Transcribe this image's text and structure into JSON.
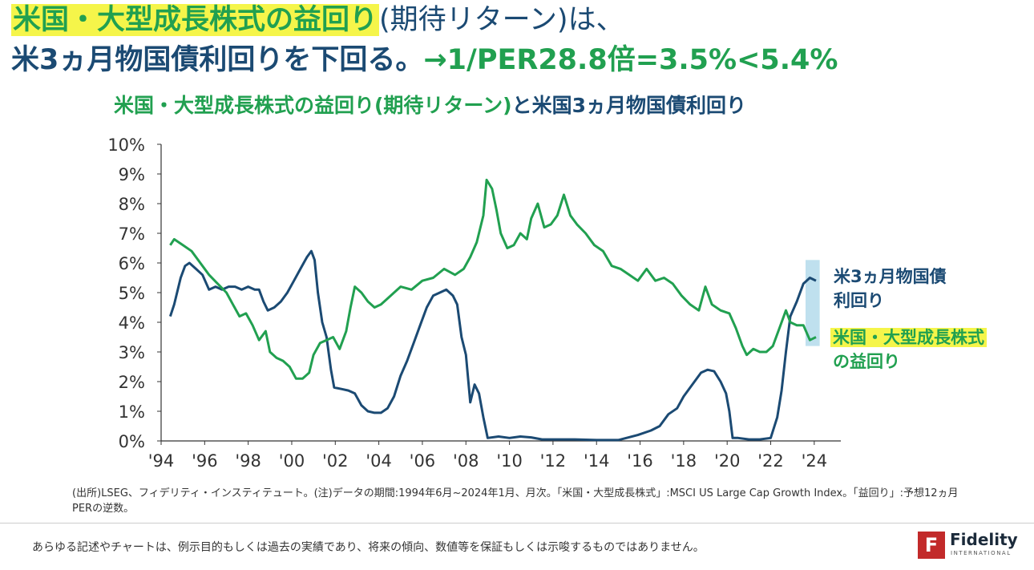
{
  "headline": {
    "line1_highlight": "米国・大型成長株式の益回り",
    "line1_rest": "(期待リターン)は、",
    "line2_main": "米3ヵ月物国債利回りを下回る。",
    "line2_formula": "→1/PER28.8倍=3.5%<5.4%"
  },
  "chart_data": {
    "type": "line",
    "title_part1": "米国・大型成長株式の益回り(期待リターン)",
    "title_part2": "と米国3ヵ月物国債利回り",
    "y_unit": "%",
    "ylim": [
      0,
      10
    ],
    "y_ticks": [
      "10%",
      "9%",
      "8%",
      "7%",
      "6%",
      "5%",
      "4%",
      "3%",
      "2%",
      "1%",
      "0%"
    ],
    "xlim": [
      1994.0,
      2025.0
    ],
    "x_ticks": [
      "'94",
      "'96",
      "'98",
      "'00",
      "'02",
      "'04",
      "'06",
      "'08",
      "'10",
      "'12",
      "'14",
      "'16",
      "'18",
      "'20",
      "'22",
      "'24"
    ],
    "series": [
      {
        "name": "米3ヵ月物国債利回り",
        "color": "#1b4a73",
        "points": [
          [
            1994.42,
            4.2
          ],
          [
            1994.6,
            4.6
          ],
          [
            1994.9,
            5.5
          ],
          [
            1995.1,
            5.9
          ],
          [
            1995.3,
            6.0
          ],
          [
            1995.6,
            5.8
          ],
          [
            1995.9,
            5.6
          ],
          [
            1996.2,
            5.1
          ],
          [
            1996.5,
            5.2
          ],
          [
            1996.8,
            5.1
          ],
          [
            1997.1,
            5.2
          ],
          [
            1997.4,
            5.2
          ],
          [
            1997.7,
            5.1
          ],
          [
            1998.0,
            5.2
          ],
          [
            1998.3,
            5.1
          ],
          [
            1998.5,
            5.1
          ],
          [
            1998.7,
            4.7
          ],
          [
            1998.9,
            4.4
          ],
          [
            1999.2,
            4.5
          ],
          [
            1999.5,
            4.7
          ],
          [
            1999.8,
            5.0
          ],
          [
            2000.1,
            5.4
          ],
          [
            2000.4,
            5.8
          ],
          [
            2000.7,
            6.2
          ],
          [
            2000.9,
            6.4
          ],
          [
            2001.05,
            6.1
          ],
          [
            2001.2,
            5.0
          ],
          [
            2001.4,
            4.0
          ],
          [
            2001.6,
            3.5
          ],
          [
            2001.8,
            2.4
          ],
          [
            2001.95,
            1.8
          ],
          [
            2002.3,
            1.75
          ],
          [
            2002.6,
            1.7
          ],
          [
            2002.9,
            1.6
          ],
          [
            2003.2,
            1.2
          ],
          [
            2003.5,
            1.0
          ],
          [
            2003.8,
            0.95
          ],
          [
            2004.1,
            0.95
          ],
          [
            2004.4,
            1.1
          ],
          [
            2004.7,
            1.5
          ],
          [
            2005.0,
            2.2
          ],
          [
            2005.3,
            2.7
          ],
          [
            2005.6,
            3.3
          ],
          [
            2005.9,
            3.9
          ],
          [
            2006.2,
            4.5
          ],
          [
            2006.5,
            4.9
          ],
          [
            2006.8,
            5.0
          ],
          [
            2007.1,
            5.1
          ],
          [
            2007.4,
            4.9
          ],
          [
            2007.6,
            4.6
          ],
          [
            2007.8,
            3.5
          ],
          [
            2008.0,
            2.9
          ],
          [
            2008.2,
            1.3
          ],
          [
            2008.4,
            1.9
          ],
          [
            2008.6,
            1.6
          ],
          [
            2008.8,
            0.8
          ],
          [
            2009.0,
            0.1
          ],
          [
            2009.5,
            0.15
          ],
          [
            2010.0,
            0.1
          ],
          [
            2010.5,
            0.15
          ],
          [
            2011.0,
            0.12
          ],
          [
            2011.5,
            0.05
          ],
          [
            2012.0,
            0.05
          ],
          [
            2013.0,
            0.05
          ],
          [
            2014.0,
            0.03
          ],
          [
            2015.0,
            0.03
          ],
          [
            2015.9,
            0.2
          ],
          [
            2016.5,
            0.35
          ],
          [
            2016.9,
            0.5
          ],
          [
            2017.3,
            0.9
          ],
          [
            2017.7,
            1.1
          ],
          [
            2018.0,
            1.5
          ],
          [
            2018.4,
            1.9
          ],
          [
            2018.8,
            2.3
          ],
          [
            2019.1,
            2.4
          ],
          [
            2019.4,
            2.35
          ],
          [
            2019.7,
            2.0
          ],
          [
            2019.95,
            1.6
          ],
          [
            2020.1,
            1.0
          ],
          [
            2020.25,
            0.1
          ],
          [
            2020.5,
            0.1
          ],
          [
            2021.0,
            0.05
          ],
          [
            2021.5,
            0.05
          ],
          [
            2022.0,
            0.1
          ],
          [
            2022.3,
            0.8
          ],
          [
            2022.5,
            1.7
          ],
          [
            2022.7,
            3.0
          ],
          [
            2022.9,
            4.2
          ],
          [
            2023.2,
            4.7
          ],
          [
            2023.5,
            5.3
          ],
          [
            2023.8,
            5.5
          ],
          [
            2024.08,
            5.4
          ]
        ]
      },
      {
        "name": "米国・大型成長株式の益回り",
        "color": "#21a050",
        "points": [
          [
            1994.42,
            6.6
          ],
          [
            1994.6,
            6.8
          ],
          [
            1995.0,
            6.6
          ],
          [
            1995.4,
            6.4
          ],
          [
            1995.8,
            6.0
          ],
          [
            1996.2,
            5.6
          ],
          [
            1996.6,
            5.3
          ],
          [
            1997.0,
            5.0
          ],
          [
            1997.3,
            4.6
          ],
          [
            1997.6,
            4.2
          ],
          [
            1997.9,
            4.3
          ],
          [
            1998.2,
            3.9
          ],
          [
            1998.5,
            3.4
          ],
          [
            1998.8,
            3.7
          ],
          [
            1999.0,
            3.0
          ],
          [
            1999.3,
            2.8
          ],
          [
            1999.6,
            2.7
          ],
          [
            1999.9,
            2.5
          ],
          [
            2000.2,
            2.1
          ],
          [
            2000.5,
            2.1
          ],
          [
            2000.8,
            2.3
          ],
          [
            2001.0,
            2.9
          ],
          [
            2001.3,
            3.3
          ],
          [
            2001.6,
            3.4
          ],
          [
            2001.9,
            3.5
          ],
          [
            2002.2,
            3.1
          ],
          [
            2002.5,
            3.7
          ],
          [
            2002.7,
            4.5
          ],
          [
            2002.9,
            5.2
          ],
          [
            2003.2,
            5.0
          ],
          [
            2003.5,
            4.7
          ],
          [
            2003.8,
            4.5
          ],
          [
            2004.1,
            4.6
          ],
          [
            2004.4,
            4.8
          ],
          [
            2004.7,
            5.0
          ],
          [
            2005.0,
            5.2
          ],
          [
            2005.5,
            5.1
          ],
          [
            2006.0,
            5.4
          ],
          [
            2006.5,
            5.5
          ],
          [
            2007.0,
            5.8
          ],
          [
            2007.5,
            5.6
          ],
          [
            2007.9,
            5.8
          ],
          [
            2008.2,
            6.2
          ],
          [
            2008.5,
            6.7
          ],
          [
            2008.8,
            7.6
          ],
          [
            2008.95,
            8.8
          ],
          [
            2009.2,
            8.5
          ],
          [
            2009.4,
            7.8
          ],
          [
            2009.6,
            7.0
          ],
          [
            2009.9,
            6.5
          ],
          [
            2010.2,
            6.6
          ],
          [
            2010.5,
            7.0
          ],
          [
            2010.8,
            6.8
          ],
          [
            2011.0,
            7.5
          ],
          [
            2011.3,
            8.0
          ],
          [
            2011.6,
            7.2
          ],
          [
            2011.9,
            7.3
          ],
          [
            2012.2,
            7.6
          ],
          [
            2012.5,
            8.3
          ],
          [
            2012.8,
            7.6
          ],
          [
            2013.1,
            7.3
          ],
          [
            2013.5,
            7.0
          ],
          [
            2013.9,
            6.6
          ],
          [
            2014.3,
            6.4
          ],
          [
            2014.7,
            5.9
          ],
          [
            2015.1,
            5.8
          ],
          [
            2015.5,
            5.6
          ],
          [
            2015.9,
            5.4
          ],
          [
            2016.3,
            5.8
          ],
          [
            2016.7,
            5.4
          ],
          [
            2017.1,
            5.5
          ],
          [
            2017.5,
            5.3
          ],
          [
            2017.9,
            4.9
          ],
          [
            2018.3,
            4.6
          ],
          [
            2018.7,
            4.4
          ],
          [
            2019.0,
            5.2
          ],
          [
            2019.3,
            4.6
          ],
          [
            2019.7,
            4.4
          ],
          [
            2020.1,
            4.3
          ],
          [
            2020.4,
            3.8
          ],
          [
            2020.7,
            3.2
          ],
          [
            2020.9,
            2.9
          ],
          [
            2021.2,
            3.1
          ],
          [
            2021.5,
            3.0
          ],
          [
            2021.8,
            3.0
          ],
          [
            2022.1,
            3.2
          ],
          [
            2022.4,
            3.8
          ],
          [
            2022.7,
            4.4
          ],
          [
            2022.9,
            4.0
          ],
          [
            2023.2,
            3.9
          ],
          [
            2023.5,
            3.9
          ],
          [
            2023.8,
            3.4
          ],
          [
            2024.08,
            3.5
          ]
        ]
      }
    ],
    "highlight_range": [
      2023.6,
      2024.25
    ]
  },
  "series_labels": {
    "navy_line1": "米3ヵ月物国債",
    "navy_line2": "利回り",
    "green_line1": "米国・大型成長株式",
    "green_line2": "の益回り"
  },
  "note": "(出所)LSEG、フィデリティ・インスティテュート。(注)データの期間:1994年6月~2024年1月、月次。「米国・大型成長株式」:MSCI US Large Cap Growth Index。「益回り」:予想12ヵ月PERの逆数。",
  "disclaimer": "あらゆる記述やチャートは、例示目的もしくは過去の実績であり、将来の傾向、数値等を保証もしくは示唆するものではありません。",
  "logo": {
    "mark": "F",
    "name": "Fidelity",
    "sub": "INTERNATIONAL"
  }
}
